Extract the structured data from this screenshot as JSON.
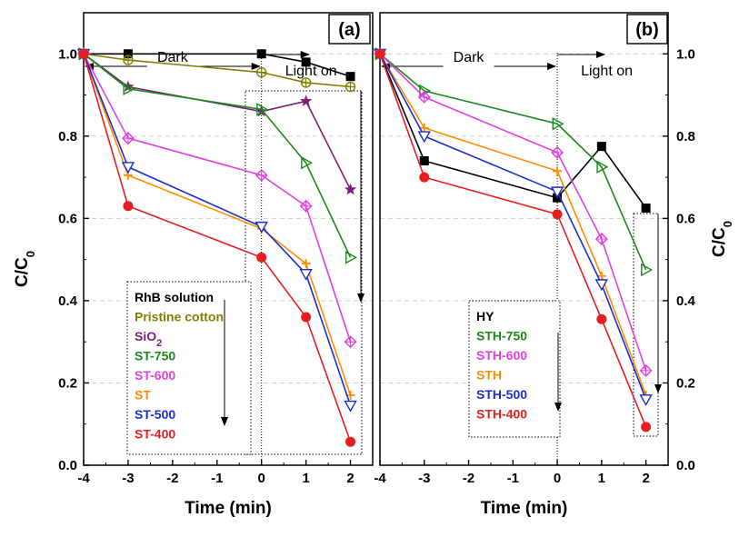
{
  "chart_data": [
    {
      "type": "line",
      "panel_label": "(a)",
      "xlabel": "Time (min)",
      "ylabel": "",
      "xlim": [
        -4,
        2.5
      ],
      "ylim": [
        0,
        1.1
      ],
      "xticks": [
        "-4",
        "-3",
        "-2",
        "-1",
        "0",
        "1",
        "2"
      ],
      "yticks": [
        "0.0",
        "0.2",
        "0.4",
        "0.6",
        "0.8",
        "1.0"
      ],
      "grid": "horizontal dashed",
      "annotations": {
        "dark": "Dark",
        "light": "Light on"
      },
      "series": [
        {
          "name": "RhB solution",
          "color": "#000000",
          "marker": "square",
          "x": [
            -4,
            -3,
            0,
            1,
            2
          ],
          "y": [
            1.0,
            1.0,
            1.0,
            0.98,
            0.945
          ]
        },
        {
          "name": "Pristine cotton",
          "color": "#808000",
          "marker": "circle-plus",
          "x": [
            -4,
            -3,
            0,
            1,
            2
          ],
          "y": [
            1.0,
            0.985,
            0.955,
            0.93,
            0.92
          ]
        },
        {
          "name": "SiO",
          "name_sub": "2",
          "color": "#7b1f7b",
          "marker": "star",
          "x": [
            -4,
            -3,
            0,
            1,
            2
          ],
          "y": [
            1.0,
            0.92,
            0.86,
            0.885,
            0.67
          ]
        },
        {
          "name": "ST-750",
          "color": "#1a8a1a",
          "marker": "triangle-right",
          "x": [
            -4,
            -3,
            0,
            1,
            2
          ],
          "y": [
            1.0,
            0.915,
            0.865,
            0.735,
            0.505
          ]
        },
        {
          "name": "ST-600",
          "color": "#e040e0",
          "marker": "diamond-plus",
          "x": [
            -4,
            -3,
            0,
            1,
            2
          ],
          "y": [
            1.0,
            0.795,
            0.705,
            0.63,
            0.3
          ]
        },
        {
          "name": "ST",
          "color": "#ff8c00",
          "marker": "plus",
          "x": [
            -4,
            -3,
            0,
            1,
            2
          ],
          "y": [
            1.0,
            0.705,
            0.575,
            0.49,
            0.17
          ]
        },
        {
          "name": "ST-500",
          "color": "#1a2ecc",
          "marker": "triangle-down",
          "x": [
            -4,
            -3,
            0,
            1,
            2
          ],
          "y": [
            1.0,
            0.725,
            0.58,
            0.465,
            0.145
          ]
        },
        {
          "name": "ST-400",
          "color": "#e61e1e",
          "marker": "filled-circle",
          "x": [
            -4,
            -3,
            0,
            1,
            2
          ],
          "y": [
            1.0,
            0.63,
            0.505,
            0.36,
            0.057
          ]
        }
      ]
    },
    {
      "type": "line",
      "panel_label": "(b)",
      "xlabel": "Time (min)",
      "ylabel": "C/C",
      "ylabel_sub": "0",
      "xlim": [
        -4,
        2.5
      ],
      "ylim": [
        0,
        1.1
      ],
      "xticks": [
        "-4",
        "-3",
        "-2",
        "-1",
        "0",
        "1",
        "2"
      ],
      "yticks": [
        "0.0",
        "0.2",
        "0.4",
        "0.6",
        "0.8",
        "1.0"
      ],
      "grid": "horizontal dashed",
      "annotations": {
        "dark": "Dark",
        "light": "Light on"
      },
      "series": [
        {
          "name": "HY",
          "color": "#000000",
          "marker": "square",
          "x": [
            -4,
            -3,
            0,
            1,
            2
          ],
          "y": [
            1.0,
            0.74,
            0.65,
            0.775,
            0.625
          ]
        },
        {
          "name": "STH-750",
          "color": "#1a8a1a",
          "marker": "triangle-right",
          "x": [
            -4,
            -3,
            0,
            1,
            2
          ],
          "y": [
            1.0,
            0.91,
            0.83,
            0.725,
            0.475
          ]
        },
        {
          "name": "STH-600",
          "color": "#e040e0",
          "marker": "diamond-plus",
          "x": [
            -4,
            -3,
            0,
            1,
            2
          ],
          "y": [
            1.0,
            0.895,
            0.76,
            0.55,
            0.23
          ]
        },
        {
          "name": "STH",
          "color": "#ff8c00",
          "marker": "plus",
          "x": [
            -4,
            -3,
            0,
            1,
            2
          ],
          "y": [
            1.0,
            0.82,
            0.715,
            0.46,
            0.17
          ]
        },
        {
          "name": "STH-500",
          "color": "#1a2ecc",
          "marker": "triangle-down",
          "x": [
            -4,
            -3,
            0,
            1,
            2
          ],
          "y": [
            1.0,
            0.8,
            0.665,
            0.44,
            0.16
          ]
        },
        {
          "name": "STH-400",
          "color": "#e61e1e",
          "marker": "filled-circle",
          "x": [
            -4,
            -3,
            0,
            1,
            2
          ],
          "y": [
            1.0,
            0.7,
            0.61,
            0.355,
            0.093
          ]
        }
      ]
    }
  ],
  "shared_ylabel": {
    "text": "C/C",
    "sub": "0"
  }
}
